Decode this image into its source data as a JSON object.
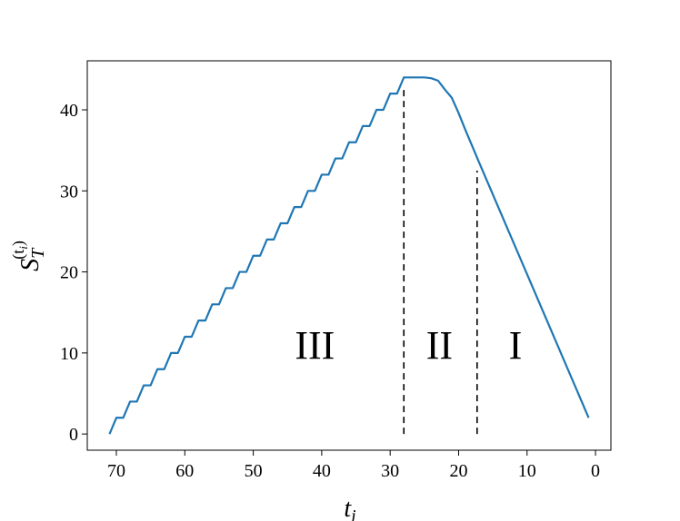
{
  "chart_data": {
    "type": "line",
    "xlabel": {
      "base": "t",
      "sub": "i"
    },
    "ylabel": {
      "base": "S",
      "sub": "T",
      "sup": "(t",
      "sup_sub": "i",
      "sup_end": ")"
    },
    "x": [
      71,
      70,
      69,
      68,
      67,
      66,
      65,
      64,
      63,
      62,
      61,
      60,
      59,
      58,
      57,
      56,
      55,
      54,
      53,
      52,
      51,
      50,
      49,
      48,
      47,
      46,
      45,
      44,
      43,
      42,
      41,
      40,
      39,
      38,
      37,
      36,
      35,
      34,
      33,
      32,
      31,
      30,
      29,
      28,
      27,
      26,
      25,
      24,
      23,
      22,
      21,
      20,
      19,
      18,
      17,
      1
    ],
    "series": [
      {
        "color": "#1f77b4",
        "values": [
          0,
          2,
          2,
          4,
          4,
          6,
          6,
          8,
          8,
          10,
          10,
          12,
          12,
          14,
          14,
          16,
          16,
          18,
          18,
          20,
          20,
          22,
          22,
          24,
          24,
          26,
          26,
          28,
          28,
          30,
          30,
          32,
          32,
          34,
          34,
          36,
          36,
          38,
          38,
          40,
          40,
          42,
          42,
          44,
          44,
          44,
          44,
          43.9,
          43.6,
          42.5,
          41.5,
          39.6,
          37.5,
          35.5,
          33.5,
          2
        ]
      }
    ],
    "vlines": [
      {
        "x": 28,
        "ymin": 0,
        "ymax": 42.5,
        "color": "#000000"
      },
      {
        "x": 17.3,
        "ymin": 0,
        "ymax": 32.5,
        "color": "#000000"
      }
    ],
    "annotations": [
      {
        "text": "III",
        "x": 41,
        "y": 9.3
      },
      {
        "text": "II",
        "x": 22.8,
        "y": 9.3
      },
      {
        "text": "I",
        "x": 11.7,
        "y": 9.3
      }
    ],
    "xlim": [
      74.25,
      -2.25
    ],
    "xticks": [
      70,
      60,
      50,
      40,
      30,
      20,
      10,
      0
    ],
    "ylim": [
      -2,
      46.05
    ],
    "yticks": [
      0,
      10,
      20,
      30,
      40
    ],
    "grid": false
  }
}
